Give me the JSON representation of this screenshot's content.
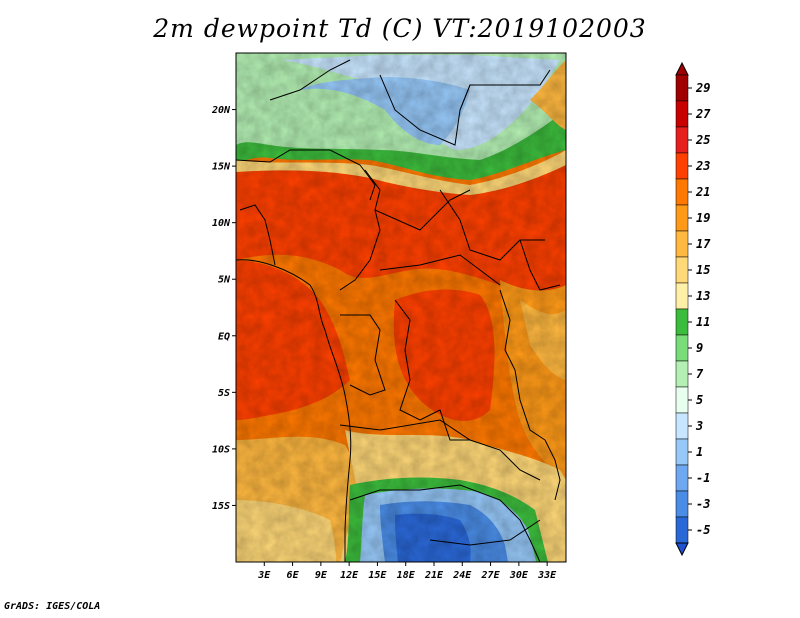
{
  "title": "2m dewpoint Td (C) VT:2019102003",
  "credit": "GrADS: IGES/COLA",
  "map": {
    "lat_labels": [
      {
        "lat": 20,
        "text": "20N"
      },
      {
        "lat": 15,
        "text": "15N"
      },
      {
        "lat": 10,
        "text": "10N"
      },
      {
        "lat": 5,
        "text": "5N"
      },
      {
        "lat": 0,
        "text": "EQ"
      },
      {
        "lat": -5,
        "text": "5S"
      },
      {
        "lat": -10,
        "text": "10S"
      },
      {
        "lat": -15,
        "text": "15S"
      }
    ],
    "lon_labels": [
      {
        "lon": 3,
        "text": "3E"
      },
      {
        "lon": 6,
        "text": "6E"
      },
      {
        "lon": 9,
        "text": "9E"
      },
      {
        "lon": 12,
        "text": "12E"
      },
      {
        "lon": 15,
        "text": "15E"
      },
      {
        "lon": 18,
        "text": "18E"
      },
      {
        "lon": 21,
        "text": "21E"
      },
      {
        "lon": 24,
        "text": "24E"
      },
      {
        "lon": 27,
        "text": "27E"
      },
      {
        "lon": 30,
        "text": "30E"
      },
      {
        "lon": 33,
        "text": "33E"
      }
    ],
    "lon_range": [
      0,
      35
    ],
    "lat_range": [
      -20,
      25
    ]
  },
  "colorbar": {
    "levels": [
      {
        "label": "29",
        "color": "#a00000"
      },
      {
        "label": "27",
        "color": "#c80000"
      },
      {
        "label": "25",
        "color": "#e61e1e"
      },
      {
        "label": "23",
        "color": "#ff4000"
      },
      {
        "label": "21",
        "color": "#ff7800"
      },
      {
        "label": "19",
        "color": "#ff9a18"
      },
      {
        "label": "17",
        "color": "#ffb840"
      },
      {
        "label": "15",
        "color": "#ffd878"
      },
      {
        "label": "13",
        "color": "#fff0a8"
      },
      {
        "label": "11",
        "color": "#3cbc3c"
      },
      {
        "label": "9",
        "color": "#78dc78"
      },
      {
        "label": "7",
        "color": "#b4f0b4"
      },
      {
        "label": "5",
        "color": "#e8fff0"
      },
      {
        "label": "3",
        "color": "#c8e6ff"
      },
      {
        "label": "1",
        "color": "#96c8f8"
      },
      {
        "label": "-1",
        "color": "#6ea8f0"
      },
      {
        "label": "-3",
        "color": "#4a8ce6"
      },
      {
        "label": "-5",
        "color": "#2a68d8"
      }
    ],
    "top_color": "#a00000",
    "bottom_color": "#1e50d0"
  }
}
